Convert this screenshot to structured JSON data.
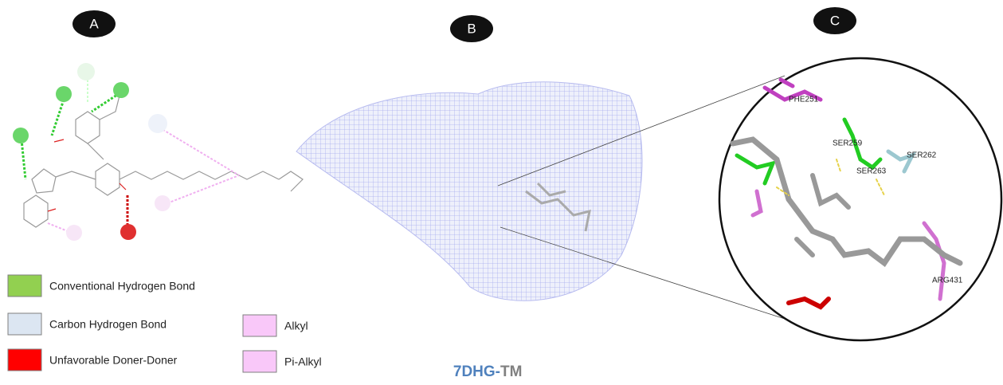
{
  "panels": [
    {
      "label": "A"
    },
    {
      "label": "B"
    },
    {
      "label": "C"
    }
  ],
  "legend": [
    {
      "label": "Conventional Hydrogen Bond",
      "color": "#92d050"
    },
    {
      "label": "Carbon Hydrogen Bond",
      "color": "#dce6f2"
    },
    {
      "label": "Unfavorable Doner-Doner",
      "color": "#ff0000"
    },
    {
      "label": "Alkyl",
      "color": "#f9c8f9"
    },
    {
      "label": "Pi-Alkyl",
      "color": "#f9c8f9"
    }
  ],
  "caption": {
    "protein": "7DHG-",
    "ligand": "TM"
  },
  "residues": [
    "PHE251",
    "SER259",
    "SER262",
    "SER263",
    "ARG431"
  ]
}
